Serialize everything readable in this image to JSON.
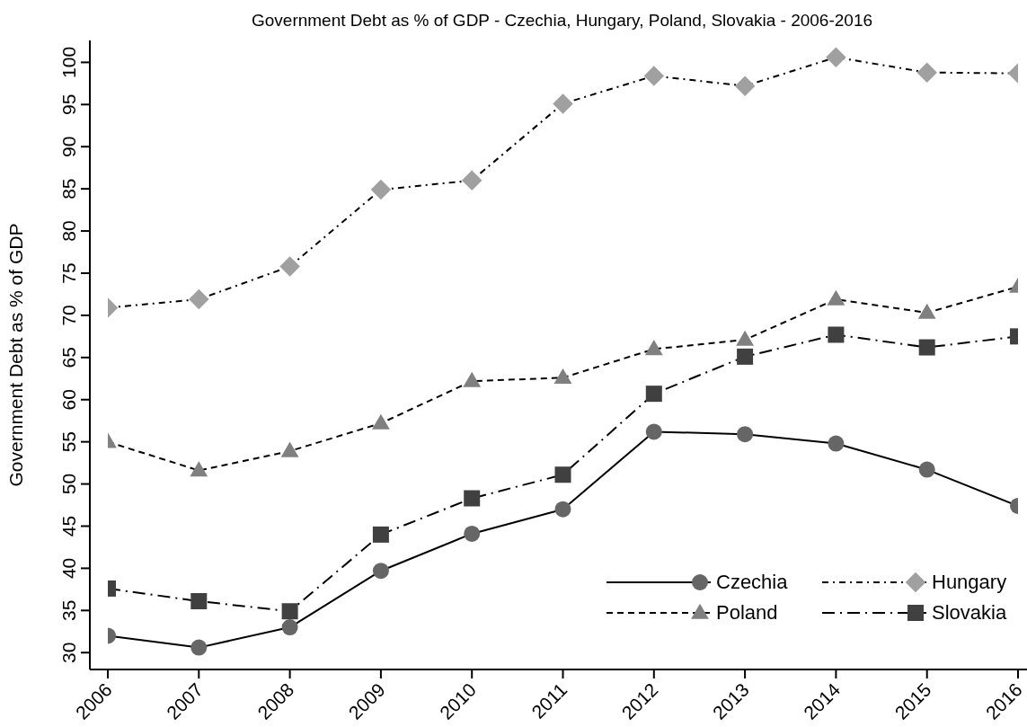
{
  "chart_data": {
    "type": "line",
    "title": "Government Debt as % of GDP - Czechia, Hungary, Poland, Slovakia - 2006-2016",
    "ylabel": "Government Debt as % of GDP",
    "categories": [
      "2006",
      "2007",
      "2008",
      "2009",
      "2010",
      "2011",
      "2012",
      "2013",
      "2014",
      "2015",
      "2016"
    ],
    "series": [
      {
        "name": "Czechia",
        "color": "#666666",
        "marker": "circle",
        "line_style": "solid",
        "values": [
          32.0,
          30.6,
          33.0,
          39.7,
          44.1,
          47.0,
          56.2,
          55.9,
          54.8,
          51.7,
          47.4
        ]
      },
      {
        "name": "Hungary",
        "color": "#a0a0a0",
        "marker": "diamond",
        "line_style": "dashdot",
        "values": [
          70.9,
          71.9,
          75.8,
          84.9,
          86.0,
          95.1,
          98.4,
          97.2,
          100.6,
          98.8,
          98.7
        ]
      },
      {
        "name": "Poland",
        "color": "#808080",
        "marker": "triangle",
        "line_style": "dashed",
        "values": [
          55.0,
          51.6,
          53.9,
          57.2,
          62.2,
          62.6,
          66.0,
          67.1,
          71.9,
          70.3,
          73.4
        ]
      },
      {
        "name": "Slovakia",
        "color": "#404040",
        "marker": "square",
        "line_style": "longdashdot",
        "values": [
          37.6,
          36.1,
          34.9,
          44.0,
          48.3,
          51.1,
          60.7,
          65.1,
          67.7,
          66.2,
          67.5
        ]
      }
    ],
    "ylim": [
      28,
      102.6
    ],
    "yticks": [
      30,
      35,
      40,
      45,
      50,
      55,
      60,
      65,
      70,
      75,
      80,
      85,
      90,
      95,
      100
    ],
    "grid": false,
    "legend": "bottom right"
  }
}
